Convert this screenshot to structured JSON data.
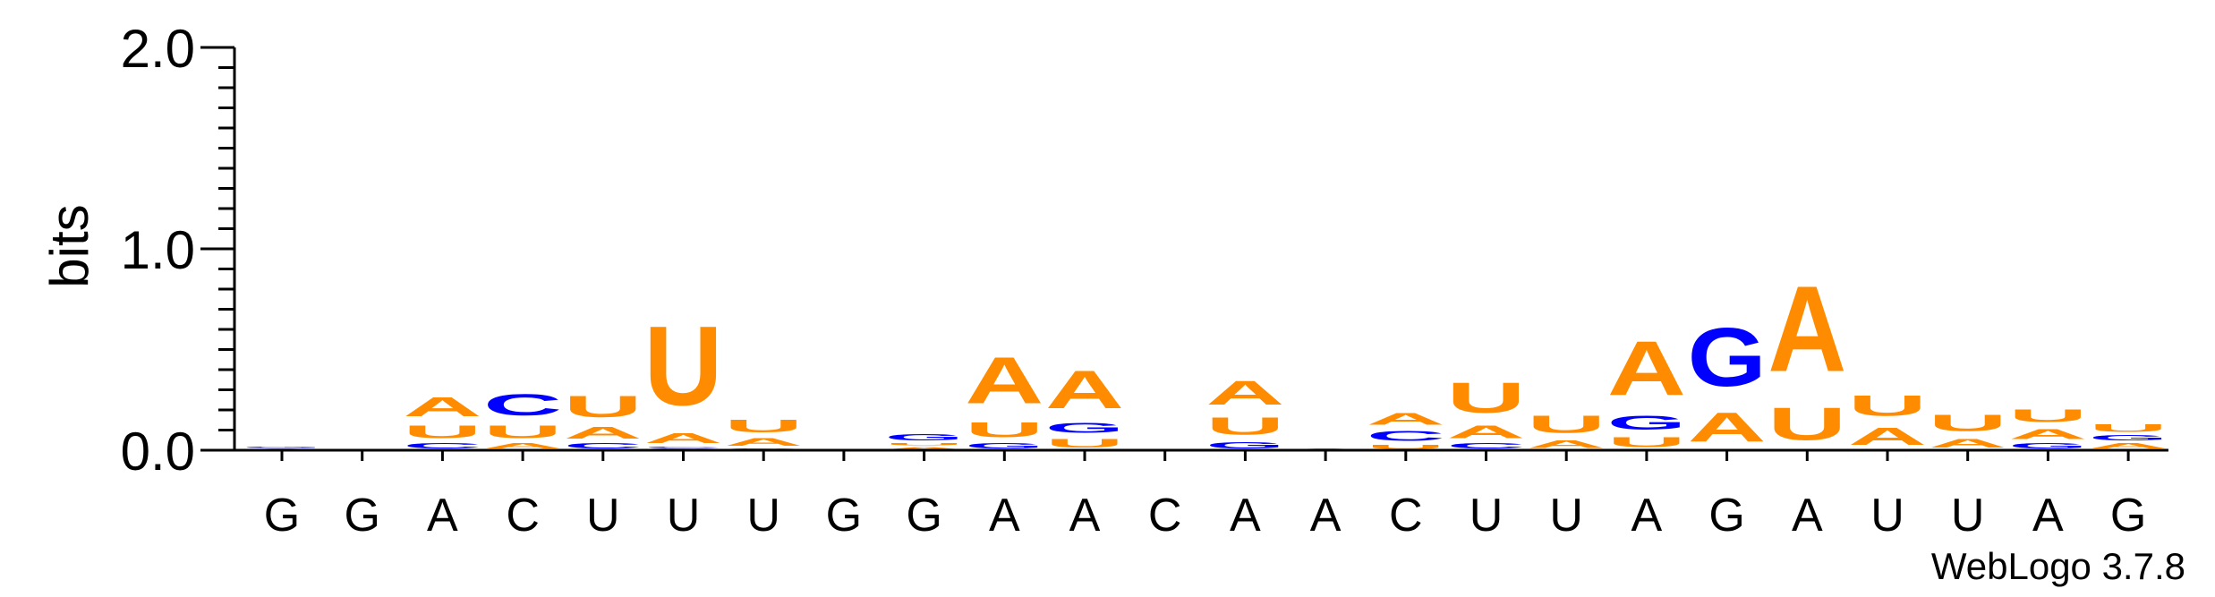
{
  "chart_data": {
    "type": "sequence-logo",
    "ylabel": "bits",
    "ylim": [
      0,
      2.0
    ],
    "yticks": [
      {
        "value": 0.0,
        "label": "0.0"
      },
      {
        "value": 1.0,
        "label": "1.0"
      },
      {
        "value": 2.0,
        "label": "2.0"
      }
    ],
    "credit": "WebLogo 3.7.8",
    "colors": {
      "A": "#ff8c00",
      "U": "#ff8c00",
      "G": "#0000ff",
      "C": "#0000ff"
    },
    "positions": [
      {
        "label": "G",
        "letters": [
          [
            "A",
            0.01
          ],
          [
            "G",
            0.01
          ]
        ]
      },
      {
        "label": "G",
        "letters": []
      },
      {
        "label": "A",
        "letters": [
          [
            "C",
            0.04
          ],
          [
            "U",
            0.1
          ],
          [
            "A",
            0.15
          ]
        ]
      },
      {
        "label": "C",
        "letters": [
          [
            "A",
            0.04
          ],
          [
            "U",
            0.1
          ],
          [
            "C",
            0.17
          ]
        ]
      },
      {
        "label": "U",
        "letters": [
          [
            "C",
            0.04
          ],
          [
            "A",
            0.09
          ],
          [
            "U",
            0.17
          ]
        ]
      },
      {
        "label": "U",
        "letters": [
          [
            "G",
            0.01
          ],
          [
            "C",
            0.01
          ],
          [
            "A",
            0.08
          ],
          [
            "U",
            0.63
          ]
        ]
      },
      {
        "label": "U",
        "letters": [
          [
            "G",
            0.01
          ],
          [
            "A",
            0.06
          ],
          [
            "U",
            0.1
          ]
        ]
      },
      {
        "label": "G",
        "letters": []
      },
      {
        "label": "G",
        "letters": [
          [
            "A",
            0.02
          ],
          [
            "U",
            0.02
          ],
          [
            "G",
            0.05
          ]
        ]
      },
      {
        "label": "A",
        "letters": [
          [
            "G",
            0.04
          ],
          [
            "U",
            0.12
          ],
          [
            "A",
            0.37
          ]
        ]
      },
      {
        "label": "A",
        "letters": [
          [
            "U",
            0.07
          ],
          [
            "G",
            0.08
          ],
          [
            "A",
            0.3
          ]
        ]
      },
      {
        "label": "C",
        "letters": []
      },
      {
        "label": "A",
        "letters": [
          [
            "G",
            0.05
          ],
          [
            "U",
            0.14
          ],
          [
            "A",
            0.19
          ]
        ]
      },
      {
        "label": "A",
        "letters": [
          [
            "A",
            0.01
          ]
        ]
      },
      {
        "label": "C",
        "letters": [
          [
            "U",
            0.03
          ],
          [
            "C",
            0.08
          ],
          [
            "A",
            0.09
          ]
        ]
      },
      {
        "label": "U",
        "letters": [
          [
            "C",
            0.04
          ],
          [
            "A",
            0.1
          ],
          [
            "U",
            0.24
          ]
        ]
      },
      {
        "label": "U",
        "letters": [
          [
            "A",
            0.06
          ],
          [
            "U",
            0.14
          ]
        ]
      },
      {
        "label": "A",
        "letters": [
          [
            "U",
            0.08
          ],
          [
            "G",
            0.11
          ],
          [
            "A",
            0.43
          ]
        ]
      },
      {
        "label": "G",
        "letters": [
          [
            "A",
            0.23
          ],
          [
            "G",
            0.46
          ]
        ]
      },
      {
        "label": "A",
        "letters": [
          [
            "U",
            0.26
          ],
          [
            "A",
            0.68
          ]
        ]
      },
      {
        "label": "U",
        "letters": [
          [
            "A",
            0.14
          ],
          [
            "U",
            0.16
          ]
        ]
      },
      {
        "label": "U",
        "letters": [
          [
            "A",
            0.07
          ],
          [
            "U",
            0.13
          ]
        ]
      },
      {
        "label": "A",
        "letters": [
          [
            "G",
            0.04
          ],
          [
            "A",
            0.08
          ],
          [
            "U",
            0.1
          ]
        ]
      },
      {
        "label": "G",
        "letters": [
          [
            "A",
            0.04
          ],
          [
            "G",
            0.04
          ],
          [
            "U",
            0.06
          ]
        ]
      }
    ]
  }
}
